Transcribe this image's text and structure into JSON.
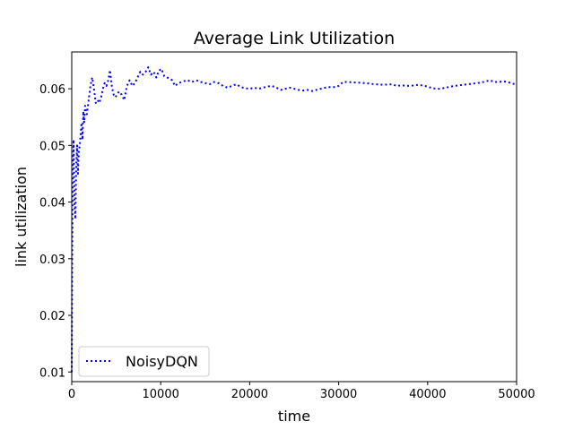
{
  "chart_data": {
    "type": "line",
    "title": "Average Link Utilization",
    "xlabel": "time",
    "ylabel": "link utilization",
    "xlim": [
      0,
      50000
    ],
    "ylim": [
      0.0083,
      0.0665
    ],
    "x_ticks": [
      0,
      10000,
      20000,
      30000,
      40000,
      50000
    ],
    "x_tick_labels": [
      "0",
      "10000",
      "20000",
      "30000",
      "40000",
      "50000"
    ],
    "y_ticks": [
      0.01,
      0.02,
      0.03,
      0.04,
      0.05,
      0.06
    ],
    "y_tick_labels": [
      "0.01",
      "0.02",
      "0.03",
      "0.04",
      "0.05",
      "0.06"
    ],
    "grid": false,
    "legend_position": "lower-left",
    "series": [
      {
        "name": "NoisyDQN",
        "color": "#0000ff",
        "line_style": "dotted",
        "points": [
          [
            0,
            0.01
          ],
          [
            50,
            0.03
          ],
          [
            120,
            0.046
          ],
          [
            200,
            0.051
          ],
          [
            300,
            0.04
          ],
          [
            400,
            0.037
          ],
          [
            500,
            0.046
          ],
          [
            600,
            0.05
          ],
          [
            700,
            0.045
          ],
          [
            800,
            0.049
          ],
          [
            900,
            0.05
          ],
          [
            1000,
            0.052
          ],
          [
            1100,
            0.054
          ],
          [
            1200,
            0.051
          ],
          [
            1300,
            0.056
          ],
          [
            1400,
            0.054
          ],
          [
            1500,
            0.057
          ],
          [
            1700,
            0.0555
          ],
          [
            1900,
            0.058
          ],
          [
            2100,
            0.0605
          ],
          [
            2300,
            0.062
          ],
          [
            2500,
            0.06
          ],
          [
            2700,
            0.0575
          ],
          [
            2900,
            0.058
          ],
          [
            3100,
            0.0575
          ],
          [
            3300,
            0.0585
          ],
          [
            3500,
            0.06
          ],
          [
            3700,
            0.061
          ],
          [
            3900,
            0.0605
          ],
          [
            4100,
            0.0615
          ],
          [
            4300,
            0.0633
          ],
          [
            4500,
            0.0605
          ],
          [
            4700,
            0.059
          ],
          [
            4900,
            0.0585
          ],
          [
            5100,
            0.059
          ],
          [
            5300,
            0.0595
          ],
          [
            5600,
            0.059
          ],
          [
            5900,
            0.058
          ],
          [
            6200,
            0.0605
          ],
          [
            6500,
            0.0615
          ],
          [
            6800,
            0.0605
          ],
          [
            7100,
            0.061
          ],
          [
            7400,
            0.062
          ],
          [
            7700,
            0.063
          ],
          [
            8000,
            0.0625
          ],
          [
            8300,
            0.063
          ],
          [
            8600,
            0.0638
          ],
          [
            8900,
            0.0625
          ],
          [
            9200,
            0.063
          ],
          [
            9500,
            0.062
          ],
          [
            9800,
            0.0632
          ],
          [
            10100,
            0.0635
          ],
          [
            10400,
            0.0622
          ],
          [
            10700,
            0.062
          ],
          [
            11000,
            0.0618
          ],
          [
            11300,
            0.0615
          ],
          [
            11600,
            0.0605
          ],
          [
            12000,
            0.061
          ],
          [
            12500,
            0.0613
          ],
          [
            13000,
            0.0615
          ],
          [
            13500,
            0.0612
          ],
          [
            14000,
            0.0615
          ],
          [
            14500,
            0.0612
          ],
          [
            15000,
            0.061
          ],
          [
            15500,
            0.0608
          ],
          [
            16000,
            0.0612
          ],
          [
            16500,
            0.061
          ],
          [
            17000,
            0.0605
          ],
          [
            17500,
            0.0602
          ],
          [
            18000,
            0.0605
          ],
          [
            18500,
            0.0608
          ],
          [
            19000,
            0.0603
          ],
          [
            19500,
            0.0601
          ],
          [
            20000,
            0.06
          ],
          [
            20500,
            0.0602
          ],
          [
            21000,
            0.06
          ],
          [
            21500,
            0.0602
          ],
          [
            22000,
            0.0604
          ],
          [
            22500,
            0.0605
          ],
          [
            23000,
            0.0602
          ],
          [
            23500,
            0.0598
          ],
          [
            24000,
            0.06
          ],
          [
            24500,
            0.0602
          ],
          [
            25000,
            0.06
          ],
          [
            25500,
            0.0598
          ],
          [
            26000,
            0.0597
          ],
          [
            26500,
            0.0598
          ],
          [
            27000,
            0.0596
          ],
          [
            27500,
            0.0598
          ],
          [
            28000,
            0.06
          ],
          [
            28500,
            0.0602
          ],
          [
            29000,
            0.0603
          ],
          [
            29500,
            0.0603
          ],
          [
            30000,
            0.0605
          ],
          [
            30500,
            0.0612
          ],
          [
            31000,
            0.0612
          ],
          [
            32000,
            0.0611
          ],
          [
            33000,
            0.061
          ],
          [
            34000,
            0.0608
          ],
          [
            35000,
            0.0607
          ],
          [
            36000,
            0.0608
          ],
          [
            36500,
            0.0605
          ],
          [
            37000,
            0.0606
          ],
          [
            38000,
            0.0605
          ],
          [
            39000,
            0.0607
          ],
          [
            40000,
            0.0604
          ],
          [
            40500,
            0.0601
          ],
          [
            41000,
            0.06
          ],
          [
            41500,
            0.06
          ],
          [
            42000,
            0.0602
          ],
          [
            43000,
            0.0605
          ],
          [
            44000,
            0.0607
          ],
          [
            45000,
            0.0609
          ],
          [
            46000,
            0.0611
          ],
          [
            46500,
            0.0613
          ],
          [
            47000,
            0.0615
          ],
          [
            47500,
            0.0612
          ],
          [
            48000,
            0.0612
          ],
          [
            48500,
            0.0613
          ],
          [
            49000,
            0.0612
          ],
          [
            49500,
            0.0609
          ],
          [
            50000,
            0.0608
          ]
        ]
      }
    ]
  }
}
